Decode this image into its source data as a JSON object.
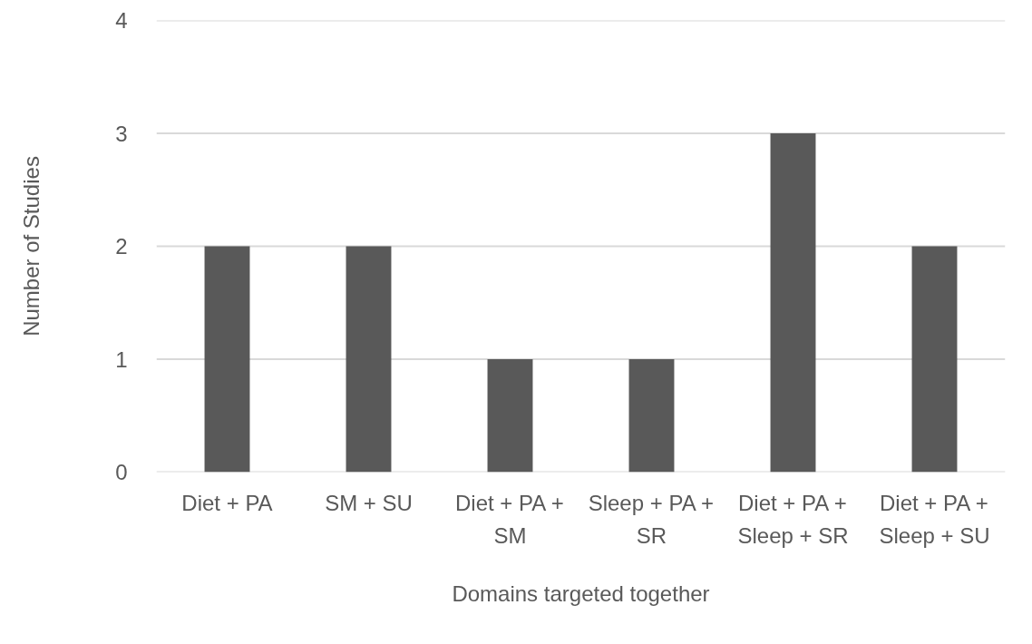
{
  "chart_data": {
    "type": "bar",
    "xlabel": "Domains targeted together",
    "ylabel": "Number of Studies",
    "categories": [
      "Diet + PA",
      "SM + SU",
      "Diet + PA + SM",
      "Sleep + PA + SR",
      "Diet + PA + Sleep + SR",
      "Diet + PA + Sleep + SU"
    ],
    "values": [
      2,
      2,
      1,
      1,
      3,
      2
    ],
    "color": "#595959",
    "ylim": [
      0,
      4
    ],
    "yticks": [
      0,
      1,
      2,
      3,
      4
    ],
    "grid": "y"
  }
}
